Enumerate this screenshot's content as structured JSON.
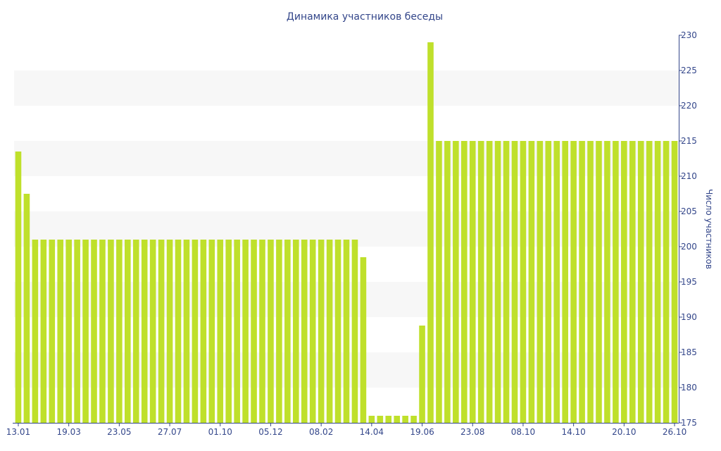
{
  "colors": {
    "bar": "#bfe02b",
    "band": "#f7f7f7",
    "axis": "#33468a",
    "text": "#33468a"
  },
  "chart_data": {
    "type": "bar",
    "title": "Динамика участников беседы",
    "xlabel": "",
    "ylabel": "Число участников",
    "ylim": [
      175,
      230
    ],
    "y_ticks": [
      175,
      180,
      185,
      190,
      195,
      200,
      205,
      210,
      215,
      220,
      225,
      230
    ],
    "y_axis_side": "right",
    "grid": "alternating horizontal bands",
    "legend": "none",
    "x_tick_labels": [
      "13.01",
      "19.03",
      "23.05",
      "27.07",
      "01.10",
      "05.12",
      "08.02",
      "14.04",
      "19.06",
      "23.08",
      "08.10",
      "14.10",
      "20.10",
      "26.10"
    ],
    "x_tick_bar_index": [
      0,
      6,
      12,
      18,
      24,
      30,
      36,
      42,
      48,
      54,
      60,
      66,
      72,
      78
    ],
    "values": [
      213.5,
      207.5,
      201,
      201,
      201,
      201,
      201,
      201,
      201,
      201,
      201,
      201,
      201,
      201,
      201,
      201,
      201,
      201,
      201,
      201,
      201,
      201,
      201,
      201,
      201,
      201,
      201,
      201,
      201,
      201,
      201,
      201,
      201,
      201,
      201,
      201,
      201,
      201,
      201,
      201,
      201,
      198.5,
      176,
      176,
      176,
      176,
      176,
      176,
      188.8,
      229,
      215,
      215,
      215,
      215,
      215,
      215,
      215,
      215,
      215,
      215,
      215,
      215,
      215,
      215,
      215,
      215,
      215,
      215,
      215,
      215,
      215,
      215,
      215,
      215,
      215,
      215,
      215,
      215,
      215
    ]
  }
}
